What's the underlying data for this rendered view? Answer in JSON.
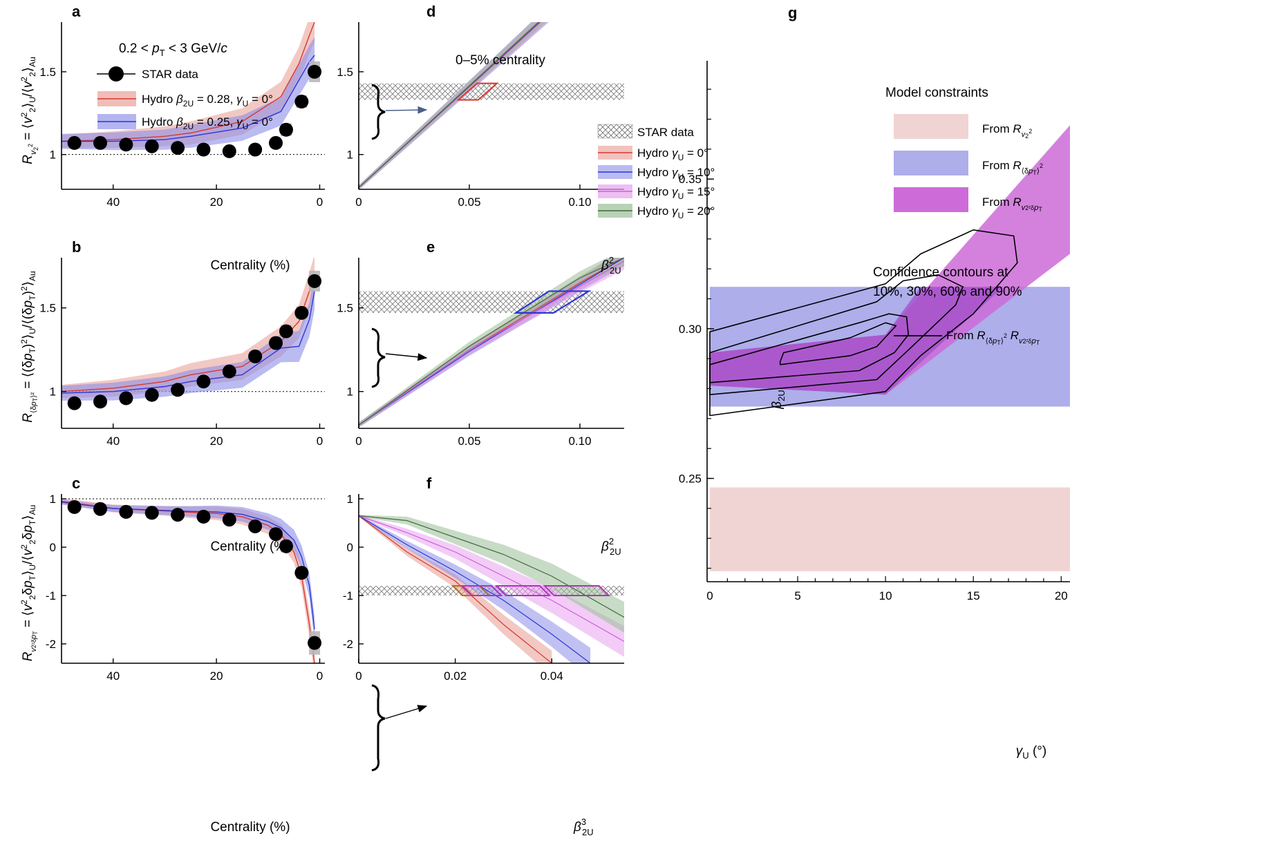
{
  "colors": {
    "red": "#d8382c",
    "red_band": "#e89a92",
    "blue": "#2b37d6",
    "blue_band": "#8c8ee8",
    "magenta": "#d05ce0",
    "magenta_band": "#e7a2ef",
    "green": "#3d6b3a",
    "green_band": "#9bbd97",
    "star_box": "#b8b8b8",
    "purple_overlap": "#9b6bc9",
    "g_pink": "#f0d4d3",
    "g_blue": "#adaeea",
    "g_magenta": "#cd6bd8"
  },
  "chart_data": [
    {
      "panel": "a",
      "type": "line",
      "annotation": "0.2 < pT < 3 GeV/c",
      "xlabel": "Centrality (%)",
      "ylabel": "Rv2^2 = ⟨v2^2⟩U/⟨v2^2⟩Au",
      "xlim": [
        50,
        -1
      ],
      "ylim": [
        0.79,
        1.8
      ],
      "xticks": [
        40,
        20,
        0
      ],
      "yticks": [
        1.0,
        1.5
      ],
      "reference_line": 1.0,
      "series": [
        {
          "name": "STAR data",
          "x": [
            47.5,
            42.5,
            37.5,
            32.5,
            27.5,
            22.5,
            17.5,
            12.5,
            8.5,
            6.5,
            3.5,
            1
          ],
          "y": [
            1.07,
            1.07,
            1.06,
            1.05,
            1.04,
            1.03,
            1.02,
            1.03,
            1.07,
            1.15,
            1.32,
            1.5
          ]
        },
        {
          "name": "Hydro β2U = 0.28, γU = 0°",
          "x": [
            50,
            40,
            30,
            25,
            15,
            7.5,
            4,
            2,
            1
          ],
          "y": [
            1.08,
            1.09,
            1.11,
            1.13,
            1.2,
            1.35,
            1.55,
            1.72,
            1.8
          ]
        },
        {
          "name": "Hydro β2U = 0.25, γU = 0°",
          "x": [
            50,
            40,
            30,
            25,
            15,
            7.5,
            4,
            2,
            1
          ],
          "y": [
            1.08,
            1.08,
            1.09,
            1.11,
            1.16,
            1.26,
            1.45,
            1.56,
            1.6
          ]
        }
      ]
    },
    {
      "panel": "b",
      "type": "line",
      "xlabel": "Centrality (%)",
      "ylabel": "R(δpT)^2 = ⟨(δpT)^2⟩U/⟨(δpT)^2⟩Au",
      "xlim": [
        50,
        -1
      ],
      "ylim": [
        0.78,
        1.8
      ],
      "xticks": [
        40,
        20,
        0
      ],
      "yticks": [
        1.0,
        1.5
      ],
      "reference_line": 1.0,
      "series": [
        {
          "name": "STAR data",
          "x": [
            47.5,
            42.5,
            37.5,
            32.5,
            27.5,
            22.5,
            17.5,
            12.5,
            8.5,
            6.5,
            3.5,
            1
          ],
          "y": [
            0.93,
            0.94,
            0.96,
            0.98,
            1.01,
            1.06,
            1.12,
            1.21,
            1.29,
            1.36,
            1.47,
            1.66
          ]
        },
        {
          "name": "Hydro β2U = 0.28, γU = 0°",
          "x": [
            50,
            40,
            30,
            25,
            15,
            7.5,
            4,
            2,
            1
          ],
          "y": [
            1.0,
            1.02,
            1.06,
            1.1,
            1.15,
            1.3,
            1.42,
            1.6,
            1.7
          ]
        },
        {
          "name": "Hydro β2U = 0.25, γU = 0°",
          "x": [
            50,
            40,
            30,
            25,
            15,
            7.5,
            4,
            2,
            1
          ],
          "y": [
            0.99,
            1.0,
            1.03,
            1.06,
            1.1,
            1.26,
            1.27,
            1.43,
            1.6
          ]
        }
      ]
    },
    {
      "panel": "c",
      "type": "line",
      "xlabel": "Centrality (%)",
      "ylabel": "Rv2^2δpT = ⟨v2^2δpT⟩U/⟨v2^2δpT⟩Au",
      "xlim": [
        50,
        -1
      ],
      "ylim": [
        -2.4,
        1.1
      ],
      "xticks": [
        40,
        20,
        0
      ],
      "yticks": [
        -2,
        -1,
        0,
        1
      ],
      "reference_line": 1.0,
      "series": [
        {
          "name": "STAR data",
          "x": [
            47.5,
            42.5,
            37.5,
            32.5,
            27.5,
            22.5,
            17.5,
            12.5,
            8.5,
            6.5,
            3.5,
            1
          ],
          "y": [
            0.83,
            0.79,
            0.73,
            0.71,
            0.67,
            0.63,
            0.57,
            0.43,
            0.27,
            0.02,
            -0.53,
            -1.98
          ]
        },
        {
          "name": "Hydro β2U = 0.28, γU = 0°",
          "x": [
            50,
            40,
            30,
            25,
            20,
            15,
            10,
            7.5,
            5,
            3.5,
            2,
            1
          ],
          "y": [
            0.95,
            0.8,
            0.75,
            0.72,
            0.7,
            0.63,
            0.45,
            0.27,
            -0.1,
            -0.6,
            -1.6,
            -2.4
          ]
        },
        {
          "name": "Hydro β2U = 0.25, γU = 0°",
          "x": [
            50,
            40,
            30,
            25,
            20,
            15,
            10,
            7.5,
            5,
            3.5,
            2,
            1
          ],
          "y": [
            0.93,
            0.8,
            0.76,
            0.74,
            0.73,
            0.68,
            0.53,
            0.4,
            0.15,
            -0.2,
            -0.8,
            -1.7
          ]
        }
      ]
    },
    {
      "panel": "d",
      "type": "line",
      "annotation": "0–5% centrality",
      "xlabel": "β2U^2",
      "xlim": [
        0,
        0.12
      ],
      "ylim": [
        0.79,
        1.8
      ],
      "xticks": [
        0,
        0.05,
        0.1
      ],
      "yticks": [
        1.0,
        1.5
      ],
      "star_band": [
        1.33,
        1.43
      ],
      "series": [
        {
          "name": "Hydro γU = 0°",
          "x": [
            0,
            0.12
          ],
          "y": [
            0.8,
            2.27
          ]
        },
        {
          "name": "Hydro γU = 10°",
          "x": [
            0,
            0.12
          ],
          "y": [
            0.8,
            2.27
          ]
        },
        {
          "name": "Hydro γU = 15°",
          "x": [
            0,
            0.12
          ],
          "y": [
            0.8,
            2.27
          ]
        },
        {
          "name": "Hydro γU = 20°",
          "x": [
            0,
            0.12
          ],
          "y": [
            0.8,
            2.27
          ]
        }
      ]
    },
    {
      "panel": "e",
      "type": "line",
      "xlabel": "β2U^2",
      "xlim": [
        0,
        0.12
      ],
      "ylim": [
        0.78,
        1.8
      ],
      "xticks": [
        0,
        0.05,
        0.1
      ],
      "yticks": [
        1.0,
        1.5
      ],
      "star_band": [
        1.47,
        1.6
      ],
      "series": [
        {
          "name": "Hydro γU = 0°",
          "x": [
            0,
            0.05,
            0.1,
            0.12
          ],
          "y": [
            0.8,
            1.25,
            1.65,
            1.8
          ]
        },
        {
          "name": "Hydro γU = 10°",
          "x": [
            0,
            0.05,
            0.1,
            0.12
          ],
          "y": [
            0.8,
            1.24,
            1.64,
            1.8
          ]
        },
        {
          "name": "Hydro γU = 15°",
          "x": [
            0,
            0.05,
            0.1,
            0.12
          ],
          "y": [
            0.8,
            1.25,
            1.63,
            1.78
          ]
        },
        {
          "name": "Hydro γU = 20°",
          "x": [
            0,
            0.05,
            0.1,
            0.12
          ],
          "y": [
            0.8,
            1.27,
            1.68,
            1.8
          ]
        }
      ]
    },
    {
      "panel": "f",
      "type": "line",
      "xlabel": "β2U^3",
      "xlim": [
        0,
        0.055
      ],
      "ylim": [
        -2.4,
        1.1
      ],
      "xticks": [
        0,
        0.02,
        0.04
      ],
      "yticks": [
        -2,
        -1,
        0,
        1
      ],
      "star_band": [
        -1.0,
        -0.8
      ],
      "series": [
        {
          "name": "Hydro γU = 0°",
          "x": [
            0,
            0.01,
            0.02,
            0.03,
            0.04
          ],
          "y": [
            0.65,
            -0.1,
            -0.7,
            -1.6,
            -2.4
          ]
        },
        {
          "name": "Hydro γU = 10°",
          "x": [
            0,
            0.01,
            0.02,
            0.03,
            0.04,
            0.048
          ],
          "y": [
            0.65,
            0.05,
            -0.5,
            -1.1,
            -1.8,
            -2.4
          ]
        },
        {
          "name": "Hydro γU = 15°",
          "x": [
            0,
            0.01,
            0.02,
            0.03,
            0.04,
            0.055
          ],
          "y": [
            0.65,
            0.3,
            -0.1,
            -0.6,
            -1.1,
            -1.95
          ]
        },
        {
          "name": "Hydro γU = 20°",
          "x": [
            0,
            0.01,
            0.02,
            0.03,
            0.04,
            0.055
          ],
          "y": [
            0.65,
            0.55,
            0.2,
            -0.15,
            -0.6,
            -1.45
          ]
        }
      ]
    },
    {
      "panel": "g",
      "type": "area",
      "xlabel": "γU (°)",
      "ylabel": "β2U",
      "xlim": [
        0,
        20.5
      ],
      "ylim": [
        0.2155,
        0.3895
      ],
      "xticks": [
        0,
        5,
        10,
        15,
        20
      ],
      "yticks": [
        0.25,
        0.3,
        0.35
      ],
      "legend_title": "Model constraints",
      "legend": [
        "From Rv2^2",
        "From R(δpT)^2",
        "From Rv2^2δpT"
      ],
      "contour_text": [
        "Confidence contours at",
        "10%, 30%, 60% and 90%"
      ],
      "contour_legend": "From R(δpT)^2 Rv2^2δpT",
      "bands": [
        {
          "name": "From Rv2^2",
          "y_range": [
            0.219,
            0.247
          ]
        },
        {
          "name": "From R(δpT)^2",
          "y_range": [
            0.274,
            0.314
          ]
        }
      ]
    }
  ],
  "labels": {
    "a": "a",
    "b": "b",
    "c": "c",
    "d": "d",
    "e": "e",
    "f": "f",
    "g": "g",
    "star": "STAR data",
    "centrality": "Centrality (%)",
    "pt_range": "0.2 < pT < 3 GeV/c",
    "cent05": "0–5% centrality",
    "legend_a1": "Hydro β2U = 0.28, γU = 0°",
    "legend_a2": "Hydro β2U = 0.25, γU = 0°",
    "legend_d1": "Hydro γU = 0°",
    "legend_d2": "Hydro γU = 10°",
    "legend_d3": "Hydro γU = 15°",
    "legend_d4": "Hydro γU = 20°",
    "model_constraints": "Model constraints",
    "from_rv2": "From Rv2^2",
    "from_rdpt": "From R(δpT)^2",
    "from_rv2dpt": "From Rv2^2δpT",
    "conf1": "Confidence contours at",
    "conf2": "10%, 30%, 60% and 90%",
    "from_combined": "From R(δpT)^2 Rv2^2δpT"
  }
}
